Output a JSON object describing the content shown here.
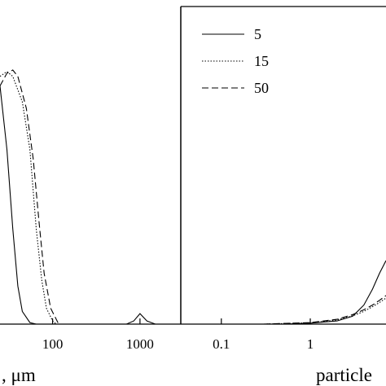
{
  "chart_data": [
    {
      "type": "line",
      "xlabel": ", μm",
      "xscale": "log",
      "xlim": [
        25,
        2930
      ],
      "ylim": [
        0,
        1
      ],
      "xticks": [
        100,
        1000
      ],
      "series": [
        {
          "color": "#000000",
          "dash": "solid",
          "x": [
            25,
            30,
            35,
            40,
            45,
            55,
            65,
            700,
            850,
            1000,
            1200,
            1500,
            2000
          ],
          "values": [
            0.75,
            0.55,
            0.3,
            0.12,
            0.04,
            0.005,
            0,
            0,
            0.01,
            0.033,
            0.01,
            0,
            0
          ]
        },
        {
          "color": "#000000",
          "dash": "dotted",
          "x": [
            25,
            30,
            35,
            45,
            55,
            65,
            75,
            85,
            100,
            110
          ],
          "values": [
            0.78,
            0.795,
            0.78,
            0.7,
            0.55,
            0.3,
            0.14,
            0.05,
            0.01,
            0
          ]
        },
        {
          "color": "#000000",
          "dash": "dashed",
          "x": [
            25,
            30,
            35,
            40,
            50,
            60,
            70,
            80,
            95,
            115,
            125
          ],
          "values": [
            0.75,
            0.79,
            0.8,
            0.78,
            0.68,
            0.52,
            0.32,
            0.16,
            0.05,
            0.005,
            0
          ]
        }
      ]
    },
    {
      "type": "line",
      "xlabel": "particle",
      "xscale": "log",
      "xlim": [
        0.035,
        7.1
      ],
      "ylim": [
        0,
        1
      ],
      "xticks": [
        0.1,
        1
      ],
      "series": [
        {
          "name": "5",
          "color": "#000000",
          "dash": "solid",
          "x": [
            0.5,
            1,
            2,
            3,
            4,
            5,
            6,
            7.1
          ],
          "values": [
            0,
            0.003,
            0.01,
            0.025,
            0.06,
            0.11,
            0.16,
            0.2
          ]
        },
        {
          "name": "15",
          "color": "#000000",
          "dash": "dotted",
          "x": [
            0.3,
            1,
            2,
            3,
            4,
            5,
            6,
            7.1
          ],
          "values": [
            0,
            0.004,
            0.013,
            0.026,
            0.04,
            0.055,
            0.068,
            0.082
          ]
        },
        {
          "name": "50",
          "color": "#000000",
          "dash": "dashed",
          "x": [
            0.3,
            1,
            2,
            3,
            4,
            5,
            6,
            7.1
          ],
          "values": [
            0,
            0.005,
            0.015,
            0.03,
            0.045,
            0.06,
            0.075,
            0.09
          ]
        }
      ]
    }
  ]
}
